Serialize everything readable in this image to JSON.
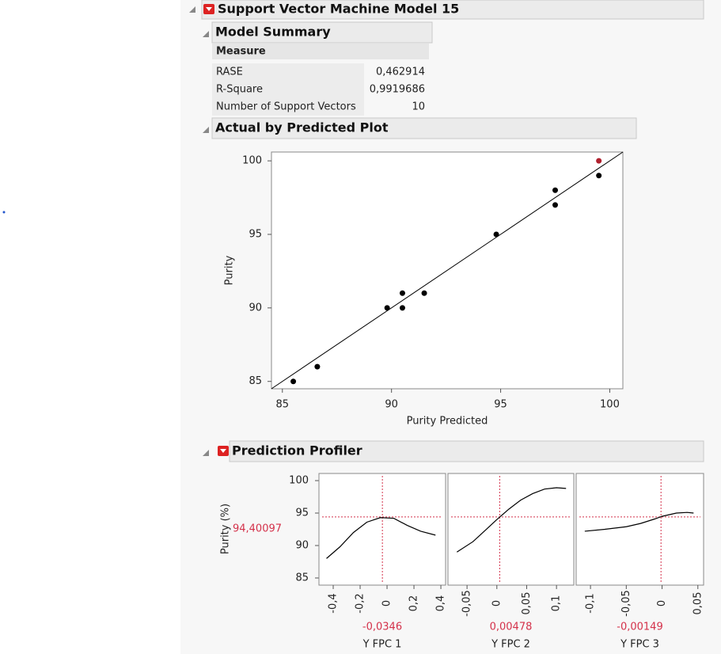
{
  "header": {
    "title": "Support Vector Machine Model 15"
  },
  "model_summary": {
    "title": "Model Summary",
    "header": "Measure",
    "rows": [
      [
        "RASE",
        "0,462914"
      ],
      [
        "R-Square",
        "0,9919686"
      ],
      [
        "Number of Support Vectors",
        "10"
      ]
    ]
  },
  "chart_data": [
    {
      "type": "scatter",
      "title": "Actual by Predicted Plot",
      "x_label": "Purity Predicted",
      "y_label": "Purity",
      "xlim": [
        84.5,
        100.6
      ],
      "ylim": [
        84.5,
        100.6
      ],
      "xticks": [
        85,
        90,
        95,
        100
      ],
      "yticks": [
        85,
        90,
        95,
        100
      ],
      "diagonal": true,
      "x": [
        85.5,
        86.6,
        89.8,
        90.5,
        90.5,
        91.5,
        94.8,
        97.5,
        97.5,
        99.5,
        99.5
      ],
      "values": [
        85,
        86,
        90,
        91,
        90,
        91,
        95,
        98,
        97,
        99,
        100
      ],
      "colors": [
        "#000000",
        "#000000",
        "#000000",
        "#000000",
        "#000000",
        "#000000",
        "#000000",
        "#000000",
        "#000000",
        "#000000",
        "#b0202e"
      ]
    },
    {
      "type": "profiler",
      "title": "Prediction Profiler",
      "y_label": "Purity (%)",
      "ylim": [
        83.9,
        101.1
      ],
      "yticks": [
        85,
        90,
        95,
        100
      ],
      "current_y": 94.40097,
      "current_y_label": "94,40097",
      "current_color": "#d4314a",
      "factors": [
        {
          "name": "Y FPC 1",
          "current": -0.0346,
          "current_label": "-0,0346",
          "xlim": [
            -0.506,
            0.435
          ],
          "xticks": [
            {
              "value": -0.4,
              "label": "-0,4"
            },
            {
              "value": -0.2,
              "label": "-0,2"
            },
            0,
            {
              "value": 0.2,
              "label": "0,2"
            },
            {
              "value": 0.4,
              "label": "0,4"
            }
          ],
          "x": [
            -0.45,
            -0.35,
            -0.25,
            -0.15,
            -0.05,
            0.05,
            0.15,
            0.25,
            0.36
          ],
          "values": [
            88.0,
            89.8,
            92.0,
            93.6,
            94.3,
            94.2,
            93.1,
            92.2,
            91.6
          ]
        },
        {
          "name": "Y FPC 2",
          "current": 0.00478,
          "current_label": "0,00478",
          "xlim": [
            -0.082,
            0.129
          ],
          "xticks": [
            {
              "value": -0.05,
              "label": "-0,05"
            },
            0,
            {
              "value": 0.05,
              "label": "0,05"
            },
            {
              "value": 0.1,
              "label": "0,1"
            }
          ],
          "x": [
            -0.067,
            -0.04,
            -0.02,
            0,
            0.02,
            0.04,
            0.06,
            0.08,
            0.1,
            0.116
          ],
          "values": [
            89.0,
            90.6,
            92.3,
            94.0,
            95.6,
            97.0,
            98.0,
            98.7,
            98.9,
            98.8
          ]
        },
        {
          "name": "Y FPC 3",
          "current": -0.00149,
          "current_label": "-0,00149",
          "xlim": [
            -0.12,
            0.058
          ],
          "xticks": [
            {
              "value": -0.1,
              "label": "-0,1"
            },
            {
              "value": -0.05,
              "label": "-0,05"
            },
            0,
            {
              "value": 0.05,
              "label": "0,05"
            }
          ],
          "x": [
            -0.108,
            -0.08,
            -0.05,
            -0.03,
            -0.01,
            0,
            0.02,
            0.035,
            0.044
          ],
          "values": [
            92.2,
            92.5,
            92.9,
            93.4,
            94.1,
            94.5,
            95.0,
            95.1,
            95.0
          ]
        }
      ]
    }
  ]
}
